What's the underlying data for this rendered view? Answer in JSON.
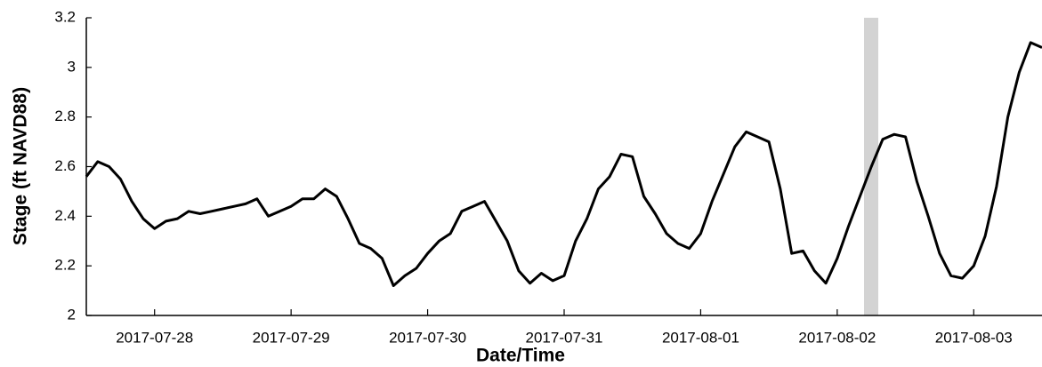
{
  "chart_data": {
    "type": "line",
    "x_label": "Date/Time",
    "y_label": "Stage (ft NAVD88)",
    "categories": [
      null,
      null,
      null,
      null,
      null,
      null,
      "2017-07-28",
      null,
      null,
      null,
      null,
      null,
      null,
      null,
      null,
      null,
      null,
      null,
      "2017-07-29",
      null,
      null,
      null,
      null,
      null,
      null,
      null,
      null,
      null,
      null,
      null,
      "2017-07-30",
      null,
      null,
      null,
      null,
      null,
      null,
      null,
      null,
      null,
      null,
      null,
      "2017-07-31",
      null,
      null,
      null,
      null,
      null,
      null,
      null,
      null,
      null,
      null,
      null,
      "2017-08-01",
      null,
      null,
      null,
      null,
      null,
      null,
      null,
      null,
      null,
      null,
      null,
      "2017-08-02",
      null,
      null,
      null,
      null,
      null,
      null,
      null,
      null,
      null,
      null,
      null,
      "2017-08-03",
      null,
      null,
      null,
      null,
      null,
      null
    ],
    "values": [
      2.56,
      2.62,
      2.6,
      2.55,
      2.46,
      2.39,
      2.35,
      2.38,
      2.39,
      2.42,
      2.41,
      2.42,
      2.43,
      2.44,
      2.45,
      2.47,
      2.4,
      2.42,
      2.44,
      2.47,
      2.47,
      2.51,
      2.48,
      2.39,
      2.29,
      2.27,
      2.23,
      2.12,
      2.16,
      2.19,
      2.25,
      2.3,
      2.33,
      2.42,
      2.44,
      2.46,
      2.38,
      2.3,
      2.18,
      2.13,
      2.17,
      2.14,
      2.16,
      2.3,
      2.39,
      2.51,
      2.56,
      2.65,
      2.64,
      2.48,
      2.41,
      2.33,
      2.29,
      2.27,
      2.33,
      2.46,
      2.57,
      2.68,
      2.74,
      2.72,
      2.7,
      2.51,
      2.25,
      2.26,
      2.18,
      2.13,
      2.23,
      2.36,
      2.48,
      2.6,
      2.71,
      2.73,
      2.72,
      2.54,
      2.4,
      2.25,
      2.16,
      2.15,
      2.2,
      2.32,
      2.52,
      2.8,
      2.98,
      3.1,
      3.08
    ],
    "color": "#000000",
    "ylim": [
      2,
      3.2
    ],
    "yticks": [
      2,
      2.2,
      2.4,
      2.6,
      2.8,
      3,
      3.2
    ]
  }
}
